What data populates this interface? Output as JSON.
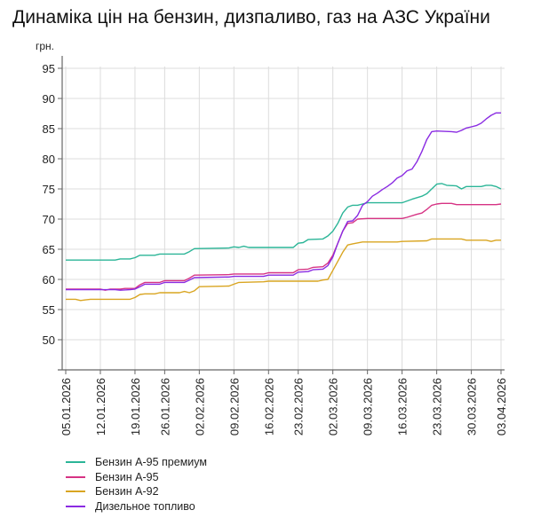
{
  "title": "Динаміка цін на бензин, дизпаливо, газ на АЗС України",
  "chart_data": {
    "type": "line",
    "title": "Динаміка цін на бензин, дизпаливо, газ на АЗС України",
    "xlabel": "",
    "ylabel": "грн.",
    "ylim": [
      45,
      97
    ],
    "yticks": [
      50,
      55,
      60,
      65,
      70,
      75,
      80,
      85,
      90,
      95
    ],
    "grid": true,
    "legend_position": "bottom-left",
    "x_start": "05.01.2026",
    "x_end": "03.04.2026",
    "xticks": [
      {
        "label": "05.01.2026",
        "day": 0
      },
      {
        "label": "12.01.2026",
        "day": 7
      },
      {
        "label": "19.01.2026",
        "day": 14
      },
      {
        "label": "26.01.2026",
        "day": 20
      },
      {
        "label": "02.02.2026",
        "day": 27
      },
      {
        "label": "09.02.2026",
        "day": 34
      },
      {
        "label": "16.02.2026",
        "day": 41
      },
      {
        "label": "23.02.2026",
        "day": 47
      },
      {
        "label": "02.03.2026",
        "day": 54
      },
      {
        "label": "09.03.2026",
        "day": 61
      },
      {
        "label": "16.03.2026",
        "day": 68
      },
      {
        "label": "23.03.2026",
        "day": 75
      },
      {
        "label": "30.03.2026",
        "day": 82
      },
      {
        "label": "03.04.2026",
        "day": 88
      }
    ],
    "series": [
      {
        "name": "Бензин А-95 премиум",
        "color": "#2bb597",
        "points": [
          [
            0,
            63.2
          ],
          [
            10,
            63.2
          ],
          [
            11,
            63.4
          ],
          [
            13,
            63.4
          ],
          [
            14,
            63.6
          ],
          [
            15,
            64.0
          ],
          [
            18,
            64.0
          ],
          [
            19,
            64.2
          ],
          [
            24,
            64.2
          ],
          [
            25,
            64.6
          ],
          [
            26,
            65.1
          ],
          [
            33,
            65.2
          ],
          [
            34,
            65.4
          ],
          [
            35,
            65.3
          ],
          [
            36,
            65.5
          ],
          [
            37,
            65.3
          ],
          [
            46,
            65.3
          ],
          [
            47,
            66.0
          ],
          [
            48,
            66.1
          ],
          [
            49,
            66.6
          ],
          [
            52,
            66.7
          ],
          [
            53,
            67.2
          ],
          [
            54,
            68.0
          ],
          [
            55,
            69.3
          ],
          [
            56,
            71.0
          ],
          [
            57,
            72.0
          ],
          [
            58,
            72.3
          ],
          [
            59,
            72.3
          ],
          [
            60,
            72.5
          ],
          [
            61,
            72.7
          ],
          [
            68,
            72.7
          ],
          [
            70,
            73.3
          ],
          [
            72,
            73.8
          ],
          [
            73,
            74.2
          ],
          [
            74,
            75.0
          ],
          [
            75,
            75.8
          ],
          [
            76,
            75.9
          ],
          [
            77,
            75.6
          ],
          [
            79,
            75.5
          ],
          [
            80,
            75.0
          ],
          [
            81,
            75.4
          ],
          [
            84,
            75.4
          ],
          [
            85,
            75.6
          ],
          [
            86,
            75.6
          ],
          [
            87,
            75.4
          ],
          [
            88,
            75.0
          ]
        ]
      },
      {
        "name": "Бензин А-95",
        "color": "#d63384",
        "points": [
          [
            0,
            58.4
          ],
          [
            7,
            58.4
          ],
          [
            8,
            58.2
          ],
          [
            9,
            58.4
          ],
          [
            11,
            58.4
          ],
          [
            12,
            58.5
          ],
          [
            14,
            58.5
          ],
          [
            15,
            59.1
          ],
          [
            16,
            59.5
          ],
          [
            19,
            59.5
          ],
          [
            20,
            59.8
          ],
          [
            24,
            59.8
          ],
          [
            25,
            60.2
          ],
          [
            26,
            60.7
          ],
          [
            33,
            60.8
          ],
          [
            34,
            60.9
          ],
          [
            40,
            60.9
          ],
          [
            41,
            61.1
          ],
          [
            46,
            61.1
          ],
          [
            47,
            61.6
          ],
          [
            49,
            61.7
          ],
          [
            50,
            62.0
          ],
          [
            52,
            62.1
          ],
          [
            53,
            62.7
          ],
          [
            54,
            64.0
          ],
          [
            55,
            66.0
          ],
          [
            56,
            68.0
          ],
          [
            57,
            69.3
          ],
          [
            58,
            69.4
          ],
          [
            59,
            70.0
          ],
          [
            61,
            70.1
          ],
          [
            68,
            70.1
          ],
          [
            69,
            70.3
          ],
          [
            71,
            70.8
          ],
          [
            72,
            71.0
          ],
          [
            73,
            71.6
          ],
          [
            74,
            72.3
          ],
          [
            75,
            72.5
          ],
          [
            76,
            72.6
          ],
          [
            78,
            72.6
          ],
          [
            79,
            72.4
          ],
          [
            87,
            72.4
          ],
          [
            88,
            72.5
          ]
        ]
      },
      {
        "name": "Бензин А-92",
        "color": "#d9a521",
        "points": [
          [
            0,
            56.7
          ],
          [
            2,
            56.7
          ],
          [
            3,
            56.5
          ],
          [
            4,
            56.6
          ],
          [
            5,
            56.7
          ],
          [
            13,
            56.7
          ],
          [
            14,
            57.0
          ],
          [
            15,
            57.5
          ],
          [
            16,
            57.6
          ],
          [
            18,
            57.6
          ],
          [
            19,
            57.8
          ],
          [
            23,
            57.8
          ],
          [
            24,
            58.0
          ],
          [
            25,
            57.8
          ],
          [
            26,
            58.1
          ],
          [
            27,
            58.8
          ],
          [
            33,
            58.9
          ],
          [
            34,
            59.2
          ],
          [
            35,
            59.5
          ],
          [
            40,
            59.6
          ],
          [
            41,
            59.7
          ],
          [
            51,
            59.7
          ],
          [
            52,
            59.9
          ],
          [
            53,
            60.0
          ],
          [
            54,
            61.5
          ],
          [
            55,
            63.0
          ],
          [
            56,
            64.5
          ],
          [
            57,
            65.7
          ],
          [
            58,
            65.9
          ],
          [
            60,
            66.2
          ],
          [
            67,
            66.2
          ],
          [
            68,
            66.3
          ],
          [
            73,
            66.4
          ],
          [
            74,
            66.7
          ],
          [
            80,
            66.7
          ],
          [
            81,
            66.5
          ],
          [
            85,
            66.5
          ],
          [
            86,
            66.3
          ],
          [
            87,
            66.5
          ],
          [
            88,
            66.5
          ]
        ]
      },
      {
        "name": "Дизельное топливо",
        "color": "#8a2be2",
        "points": [
          [
            0,
            58.3
          ],
          [
            10,
            58.3
          ],
          [
            11,
            58.2
          ],
          [
            13,
            58.3
          ],
          [
            14,
            58.4
          ],
          [
            15,
            58.8
          ],
          [
            16,
            59.2
          ],
          [
            19,
            59.2
          ],
          [
            20,
            59.5
          ],
          [
            24,
            59.5
          ],
          [
            25,
            59.9
          ],
          [
            26,
            60.3
          ],
          [
            33,
            60.4
          ],
          [
            34,
            60.5
          ],
          [
            40,
            60.5
          ],
          [
            41,
            60.7
          ],
          [
            46,
            60.7
          ],
          [
            47,
            61.2
          ],
          [
            49,
            61.3
          ],
          [
            50,
            61.6
          ],
          [
            52,
            61.7
          ],
          [
            53,
            62.3
          ],
          [
            54,
            63.7
          ],
          [
            55,
            66.0
          ],
          [
            56,
            68.0
          ],
          [
            57,
            69.6
          ],
          [
            58,
            69.7
          ],
          [
            59,
            70.6
          ],
          [
            60,
            72.3
          ],
          [
            61,
            72.9
          ],
          [
            62,
            73.8
          ],
          [
            63,
            74.3
          ],
          [
            64,
            74.9
          ],
          [
            65,
            75.4
          ],
          [
            66,
            76.0
          ],
          [
            67,
            76.8
          ],
          [
            68,
            77.2
          ],
          [
            69,
            78.0
          ],
          [
            70,
            78.3
          ],
          [
            71,
            79.5
          ],
          [
            72,
            81.2
          ],
          [
            73,
            83.2
          ],
          [
            74,
            84.5
          ],
          [
            75,
            84.6
          ],
          [
            78,
            84.5
          ],
          [
            79,
            84.4
          ],
          [
            80,
            84.7
          ],
          [
            81,
            85.1
          ],
          [
            82,
            85.3
          ],
          [
            83,
            85.5
          ],
          [
            84,
            85.9
          ],
          [
            85,
            86.6
          ],
          [
            86,
            87.2
          ],
          [
            87,
            87.6
          ],
          [
            88,
            87.6
          ]
        ]
      }
    ]
  },
  "legend": {
    "items": [
      {
        "label": "Бензин А-95 премиум",
        "color": "#2bb597"
      },
      {
        "label": "Бензин А-95",
        "color": "#d63384"
      },
      {
        "label": "Бензин А-92",
        "color": "#d9a521"
      },
      {
        "label": "Дизельное топливо",
        "color": "#8a2be2"
      }
    ]
  }
}
